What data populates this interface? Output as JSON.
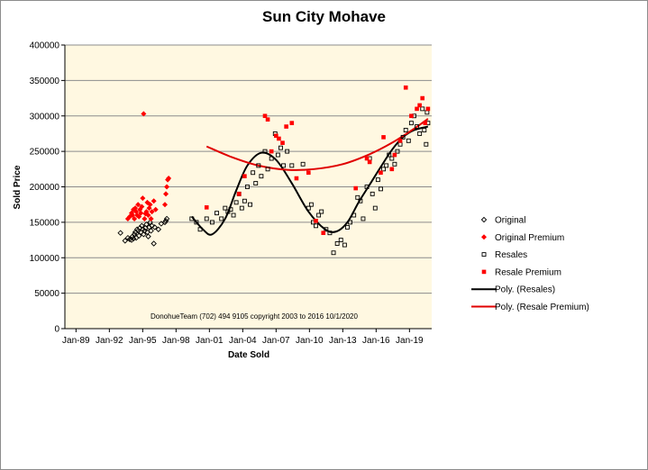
{
  "chart_data": {
    "type": "scatter",
    "title": "Sun City Mohave",
    "xlabel": "Date Sold",
    "ylabel": "Sold Price",
    "xlim": [
      "1988-01-01",
      "2021-01-01"
    ],
    "ylim": [
      0,
      400000
    ],
    "x_ticks": [
      "Jan-89",
      "Jan-92",
      "Jan-95",
      "Jan-98",
      "Jan-01",
      "Jan-04",
      "Jan-07",
      "Jan-10",
      "Jan-13",
      "Jan-16",
      "Jan-19"
    ],
    "y_ticks": [
      "0",
      "50000",
      "100000",
      "150000",
      "200000",
      "250000",
      "300000",
      "350000",
      "400000"
    ],
    "grid": "horizontal",
    "legend_position": "right",
    "annotation": "DonohueTeam   (702) 494 9105 copyright  2003 to 2016  10/1/2020",
    "series": [
      {
        "name": "Original",
        "marker": "diamond-open",
        "color": "#000000",
        "points": [
          [
            "1993-01",
            135000
          ],
          [
            "1993-06",
            124000
          ],
          [
            "1993-09",
            128000
          ],
          [
            "1993-11",
            126000
          ],
          [
            "1994-01",
            125000
          ],
          [
            "1994-02",
            130000
          ],
          [
            "1994-03",
            127000
          ],
          [
            "1994-04",
            133000
          ],
          [
            "1994-05",
            136000
          ],
          [
            "1994-06",
            128000
          ],
          [
            "1994-07",
            140000
          ],
          [
            "1994-08",
            138000
          ],
          [
            "1994-09",
            131000
          ],
          [
            "1994-10",
            142000
          ],
          [
            "1994-11",
            136000
          ],
          [
            "1994-12",
            145000
          ],
          [
            "1995-01",
            140000
          ],
          [
            "1995-02",
            133000
          ],
          [
            "1995-03",
            138000
          ],
          [
            "1995-04",
            142000
          ],
          [
            "1995-05",
            147000
          ],
          [
            "1995-06",
            136000
          ],
          [
            "1995-07",
            130000
          ],
          [
            "1995-08",
            143000
          ],
          [
            "1995-09",
            150000
          ],
          [
            "1995-10",
            138000
          ],
          [
            "1995-11",
            145000
          ],
          [
            "1996-01",
            120000
          ],
          [
            "1996-02",
            143000
          ],
          [
            "1996-06",
            140000
          ],
          [
            "1996-09",
            148000
          ],
          [
            "1997-01",
            150000
          ],
          [
            "1997-02",
            152000
          ],
          [
            "1997-03",
            155000
          ]
        ]
      },
      {
        "name": "Original Premium",
        "marker": "diamond-filled",
        "color": "#ff0000",
        "points": [
          [
            "1993-09",
            155000
          ],
          [
            "1993-11",
            158000
          ],
          [
            "1994-01",
            163000
          ],
          [
            "1994-02",
            160000
          ],
          [
            "1994-03",
            168000
          ],
          [
            "1994-04",
            155000
          ],
          [
            "1994-05",
            170000
          ],
          [
            "1994-06",
            165000
          ],
          [
            "1994-07",
            160000
          ],
          [
            "1994-08",
            175000
          ],
          [
            "1994-09",
            158000
          ],
          [
            "1994-10",
            168000
          ],
          [
            "1994-11",
            163000
          ],
          [
            "1994-12",
            172000
          ],
          [
            "1995-01",
            184000
          ],
          [
            "1995-02",
            303000
          ],
          [
            "1995-03",
            155000
          ],
          [
            "1995-04",
            162000
          ],
          [
            "1995-05",
            165000
          ],
          [
            "1995-06",
            178000
          ],
          [
            "1995-07",
            160000
          ],
          [
            "1995-08",
            170000
          ],
          [
            "1995-09",
            175000
          ],
          [
            "1995-10",
            155000
          ],
          [
            "1995-11",
            165000
          ],
          [
            "1996-01",
            180000
          ],
          [
            "1996-03",
            168000
          ],
          [
            "1997-01",
            175000
          ],
          [
            "1997-02",
            190000
          ],
          [
            "1997-03",
            200000
          ],
          [
            "1997-04",
            210000
          ],
          [
            "1997-05",
            212000
          ]
        ]
      },
      {
        "name": "Resales",
        "marker": "square-open",
        "color": "#000000",
        "points": [
          [
            "1999-06",
            155000
          ],
          [
            "1999-11",
            150000
          ],
          [
            "2000-03",
            140000
          ],
          [
            "2000-10",
            155000
          ],
          [
            "2001-04",
            150000
          ],
          [
            "2001-09",
            163000
          ],
          [
            "2002-02",
            155000
          ],
          [
            "2002-06",
            170000
          ],
          [
            "2002-09",
            165000
          ],
          [
            "2002-12",
            168000
          ],
          [
            "2003-03",
            160000
          ],
          [
            "2003-06",
            178000
          ],
          [
            "2003-09",
            190000
          ],
          [
            "2003-12",
            170000
          ],
          [
            "2004-03",
            180000
          ],
          [
            "2004-06",
            200000
          ],
          [
            "2004-09",
            175000
          ],
          [
            "2004-12",
            220000
          ],
          [
            "2005-03",
            205000
          ],
          [
            "2005-06",
            230000
          ],
          [
            "2005-09",
            215000
          ],
          [
            "2006-01",
            250000
          ],
          [
            "2006-04",
            225000
          ],
          [
            "2006-08",
            240000
          ],
          [
            "2006-12",
            275000
          ],
          [
            "2007-03",
            245000
          ],
          [
            "2007-06",
            255000
          ],
          [
            "2007-09",
            230000
          ],
          [
            "2008-01",
            250000
          ],
          [
            "2008-06",
            230000
          ],
          [
            "2009-06",
            232000
          ],
          [
            "2009-12",
            170000
          ],
          [
            "2010-03",
            175000
          ],
          [
            "2010-05",
            150000
          ],
          [
            "2010-08",
            145000
          ],
          [
            "2010-11",
            160000
          ],
          [
            "2011-02",
            165000
          ],
          [
            "2011-07",
            140000
          ],
          [
            "2011-11",
            135000
          ],
          [
            "2012-03",
            107000
          ],
          [
            "2012-07",
            120000
          ],
          [
            "2012-11",
            125000
          ],
          [
            "2013-03",
            118000
          ],
          [
            "2013-06",
            143000
          ],
          [
            "2013-09",
            150000
          ],
          [
            "2014-01",
            160000
          ],
          [
            "2014-05",
            185000
          ],
          [
            "2014-08",
            180000
          ],
          [
            "2014-11",
            155000
          ],
          [
            "2015-03",
            200000
          ],
          [
            "2015-06",
            240000
          ],
          [
            "2015-09",
            190000
          ],
          [
            "2015-12",
            170000
          ],
          [
            "2016-03",
            210000
          ],
          [
            "2016-06",
            197000
          ],
          [
            "2016-09",
            225000
          ],
          [
            "2016-12",
            230000
          ],
          [
            "2017-03",
            245000
          ],
          [
            "2017-06",
            240000
          ],
          [
            "2017-09",
            232000
          ],
          [
            "2017-12",
            250000
          ],
          [
            "2018-03",
            260000
          ],
          [
            "2018-06",
            270000
          ],
          [
            "2018-09",
            280000
          ],
          [
            "2018-12",
            265000
          ],
          [
            "2019-03",
            290000
          ],
          [
            "2019-06",
            300000
          ],
          [
            "2019-09",
            285000
          ],
          [
            "2019-12",
            275000
          ],
          [
            "2020-03",
            310000
          ],
          [
            "2020-05",
            280000
          ],
          [
            "2020-07",
            260000
          ],
          [
            "2020-08",
            305000
          ],
          [
            "2020-09",
            290000
          ]
        ]
      },
      {
        "name": "Resale Premium",
        "marker": "square-filled",
        "color": "#ff0000",
        "points": [
          [
            "2000-10",
            171000
          ],
          [
            "2003-09",
            190000
          ],
          [
            "2004-03",
            215000
          ],
          [
            "2006-01",
            300000
          ],
          [
            "2006-04",
            295000
          ],
          [
            "2006-08",
            250000
          ],
          [
            "2007-01",
            272000
          ],
          [
            "2007-04",
            268000
          ],
          [
            "2007-08",
            262000
          ],
          [
            "2007-12",
            285000
          ],
          [
            "2008-06",
            290000
          ],
          [
            "2008-11",
            212000
          ],
          [
            "2009-12",
            220000
          ],
          [
            "2010-08",
            152000
          ],
          [
            "2011-04",
            135000
          ],
          [
            "2014-03",
            198000
          ],
          [
            "2015-03",
            240000
          ],
          [
            "2015-06",
            235000
          ],
          [
            "2016-06",
            220000
          ],
          [
            "2016-09",
            270000
          ],
          [
            "2017-06",
            225000
          ],
          [
            "2017-09",
            245000
          ],
          [
            "2018-03",
            265000
          ],
          [
            "2018-09",
            340000
          ],
          [
            "2019-03",
            300000
          ],
          [
            "2019-09",
            310000
          ],
          [
            "2019-12",
            315000
          ],
          [
            "2020-03",
            325000
          ],
          [
            "2020-06",
            290000
          ],
          [
            "2020-09",
            310000
          ]
        ]
      }
    ],
    "trendlines": [
      {
        "name": "Poly. (Resales)",
        "color": "#000000",
        "points": [
          [
            "1999-06",
            158000
          ],
          [
            "2000-06",
            140000
          ],
          [
            "2001-04",
            133000
          ],
          [
            "2002-06",
            155000
          ],
          [
            "2003-06",
            195000
          ],
          [
            "2004-06",
            230000
          ],
          [
            "2005-09",
            248000
          ],
          [
            "2007-01",
            238000
          ],
          [
            "2008-06",
            205000
          ],
          [
            "2009-12",
            165000
          ],
          [
            "2011-06",
            140000
          ],
          [
            "2012-06",
            137000
          ],
          [
            "2013-06",
            150000
          ],
          [
            "2014-06",
            178000
          ],
          [
            "2015-06",
            203000
          ],
          [
            "2016-06",
            228000
          ],
          [
            "2017-06",
            252000
          ],
          [
            "2018-06",
            270000
          ],
          [
            "2019-06",
            280000
          ],
          [
            "2020-09",
            285000
          ]
        ]
      },
      {
        "name": "Poly. (Resale Premium)",
        "color": "#e00000",
        "points": [
          [
            "2000-10",
            257000
          ],
          [
            "2003-01",
            242000
          ],
          [
            "2005-06",
            230000
          ],
          [
            "2008-01",
            224000
          ],
          [
            "2010-06",
            225000
          ],
          [
            "2013-01",
            232000
          ],
          [
            "2015-06",
            246000
          ],
          [
            "2017-06",
            262000
          ],
          [
            "2019-06",
            282000
          ],
          [
            "2020-09",
            296000
          ]
        ]
      }
    ]
  }
}
